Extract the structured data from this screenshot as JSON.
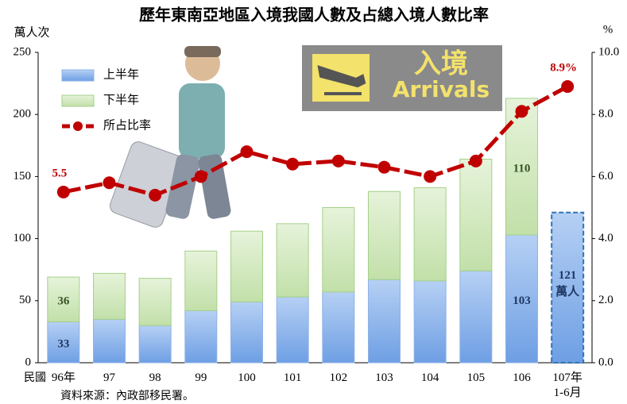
{
  "chart_data": {
    "type": "bar",
    "title": "歷年東南亞地區入境我國人數及占總入境人數比率",
    "y_label": "萬人次",
    "y2_label": "%",
    "x_prefix": "民國",
    "source": "資料來源：內政部移民署。",
    "unit_note": "萬人",
    "sign": {
      "title": "入境",
      "subtitle": "Arrivals"
    },
    "stacked": true,
    "legend": "top-left",
    "categories": [
      "96年",
      "97",
      "98",
      "99",
      "100",
      "101",
      "102",
      "103",
      "104",
      "105",
      "106",
      "107年\n1-6月"
    ],
    "series": [
      {
        "name": "上半年",
        "color": "#8db4ea",
        "values": [
          33,
          35,
          30,
          42,
          49,
          53,
          57,
          67,
          66,
          74,
          103,
          121
        ],
        "value_labels": [
          "33",
          null,
          null,
          null,
          null,
          null,
          null,
          null,
          null,
          null,
          "103",
          "121"
        ]
      },
      {
        "name": "下半年",
        "color": "#c9e4b4",
        "values": [
          36,
          37,
          38,
          48,
          57,
          59,
          68,
          71,
          75,
          90,
          110,
          null
        ],
        "value_labels": [
          "36",
          null,
          null,
          null,
          null,
          null,
          null,
          null,
          null,
          null,
          "110",
          null
        ]
      },
      {
        "name": "所占比率",
        "type": "line",
        "axis": "y2",
        "color": "#c00000",
        "values": [
          5.5,
          5.8,
          5.4,
          6.0,
          6.8,
          6.4,
          6.5,
          6.3,
          6.0,
          6.5,
          8.1,
          8.9
        ],
        "value_labels": [
          "5.5",
          null,
          null,
          null,
          null,
          null,
          null,
          null,
          null,
          null,
          null,
          "8.9%"
        ]
      }
    ],
    "ylim": [
      0,
      250
    ],
    "yticks": [
      0,
      50,
      100,
      150,
      200,
      250
    ],
    "y2lim": [
      0,
      10
    ],
    "y2ticks": [
      {
        "value": 0,
        "label": "0.0"
      },
      {
        "value": 2,
        "label": "2.0"
      },
      {
        "value": 4,
        "label": "4.0"
      },
      {
        "value": 6,
        "label": "6.0"
      },
      {
        "value": 8,
        "label": "8.0"
      },
      {
        "value": 10,
        "label": "10.0"
      }
    ]
  }
}
